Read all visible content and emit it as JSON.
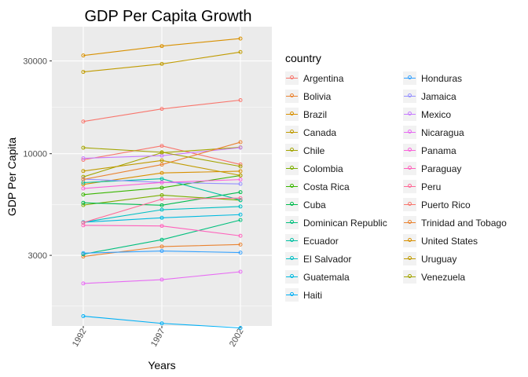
{
  "chart_data": {
    "type": "line",
    "title": "GDP Per Capita Growth",
    "xlabel": "Years",
    "ylabel": "GDP Per Capita",
    "x": [
      1992,
      1997,
      2002
    ],
    "y_scale": "log",
    "ylim": [
      1300,
      45000
    ],
    "yticks": [
      3000,
      10000,
      30000
    ],
    "legend_title": "country",
    "legend_position": "right",
    "grid": true,
    "series": [
      {
        "name": "Argentina",
        "color": "#F8766D",
        "values": [
          9300,
          10970,
          8800
        ]
      },
      {
        "name": "Bolivia",
        "color": "#EA8331",
        "values": [
          2960,
          3330,
          3410
        ]
      },
      {
        "name": "Brazil",
        "color": "#D89000",
        "values": [
          6950,
          7960,
          8130
        ]
      },
      {
        "name": "Canada",
        "color": "#C09B00",
        "values": [
          26340,
          28950,
          33330
        ]
      },
      {
        "name": "Chile",
        "color": "#A3A500",
        "values": [
          7600,
          10120,
          10780
        ]
      },
      {
        "name": "Colombia",
        "color": "#7CAE00",
        "values": [
          5440,
          6120,
          5760
        ]
      },
      {
        "name": "Costa Rica",
        "color": "#39B600",
        "values": [
          6160,
          6680,
          7720
        ]
      },
      {
        "name": "Cuba",
        "color": "#00BB4E",
        "values": [
          5590,
          5430,
          6340
        ]
      },
      {
        "name": "Dominican Republic",
        "color": "#00BF7D",
        "values": [
          3040,
          3610,
          4560
        ]
      },
      {
        "name": "Ecuador",
        "color": "#00C1A3",
        "values": [
          7100,
          7430,
          5770
        ]
      },
      {
        "name": "El Salvador",
        "color": "#00BFC4",
        "values": [
          4440,
          5150,
          5350
        ]
      },
      {
        "name": "Guatemala",
        "color": "#00BAE0",
        "values": [
          4440,
          4680,
          4860
        ]
      },
      {
        "name": "Haiti",
        "color": "#00B0F6",
        "values": [
          1460,
          1340,
          1270
        ]
      },
      {
        "name": "Honduras",
        "color": "#35A2FF",
        "values": [
          3080,
          3160,
          3100
        ]
      },
      {
        "name": "Jamaica",
        "color": "#9590FF",
        "values": [
          7400,
          7120,
          6990
        ]
      },
      {
        "name": "Mexico",
        "color": "#C77CFF",
        "values": [
          9470,
          9770,
          10740
        ]
      },
      {
        "name": "Nicaragua",
        "color": "#E76BF3",
        "values": [
          2150,
          2250,
          2470
        ]
      },
      {
        "name": "Panama",
        "color": "#FA62DB",
        "values": [
          6620,
          7110,
          7360
        ]
      },
      {
        "name": "Paraguay",
        "color": "#FF62BC",
        "values": [
          4280,
          4250,
          3780
        ]
      },
      {
        "name": "Peru",
        "color": "#FF6A98",
        "values": [
          4420,
          5840,
          5910
        ]
      },
      {
        "name": "Puerto Rico",
        "color": "#F8766D",
        "values": [
          14640,
          16999,
          18856
        ]
      },
      {
        "name": "Trinidad and Tobago",
        "color": "#EA8331",
        "values": [
          7370,
          8790,
          11460
        ]
      },
      {
        "name": "United States",
        "color": "#D89000",
        "values": [
          32000,
          35770,
          39100
        ]
      },
      {
        "name": "Uruguay",
        "color": "#C09B00",
        "values": [
          8140,
          9230,
          7730
        ]
      },
      {
        "name": "Venezuela",
        "color": "#A3A500",
        "values": [
          10730,
          10170,
          8600
        ]
      }
    ]
  }
}
